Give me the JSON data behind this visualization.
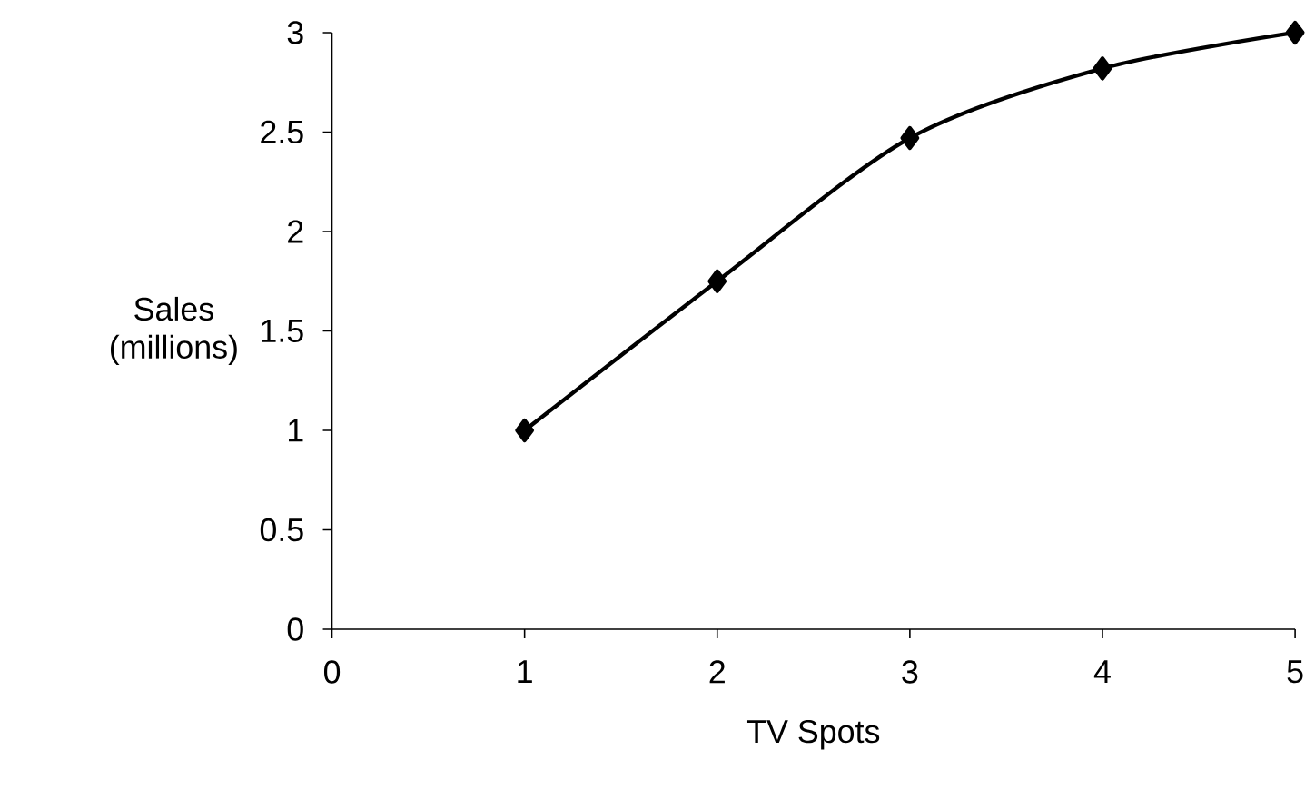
{
  "chart_data": {
    "type": "line",
    "xlabel": "TV Spots",
    "ylabel": "Sales\n(millions)",
    "x": [
      1,
      2,
      3,
      4,
      5
    ],
    "series": [
      {
        "color": "#000000",
        "values": [
          1.0,
          1.75,
          2.47,
          2.82,
          3.0
        ]
      }
    ],
    "xlim": [
      0,
      5
    ],
    "ylim": [
      0,
      3
    ],
    "xticks": [
      0,
      1,
      2,
      3,
      4,
      5
    ],
    "yticks": [
      0,
      0.5,
      1,
      1.5,
      2,
      2.5,
      3
    ],
    "marker": "diamond",
    "line_style": "solid"
  }
}
